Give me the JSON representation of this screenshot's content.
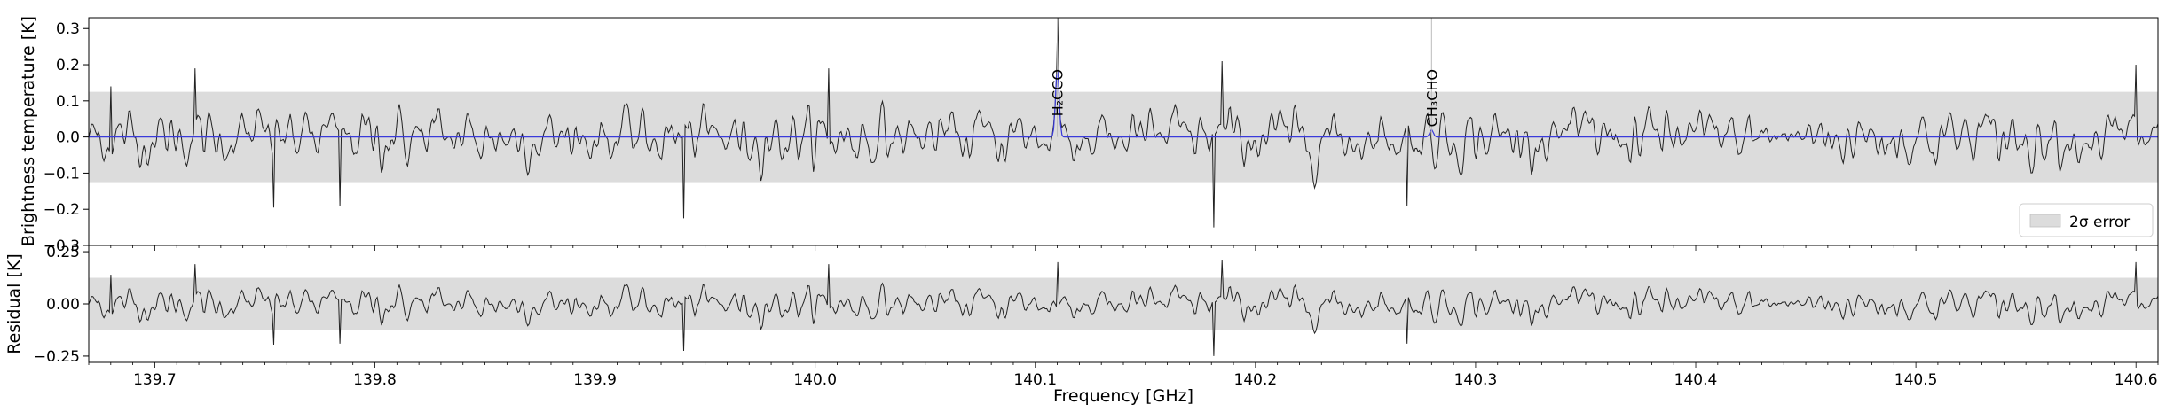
{
  "chart_data": [
    {
      "type": "line",
      "panel": "spectrum",
      "title": "",
      "xlabel": "",
      "ylabel": "Brightness temperature [K]",
      "xlim": [
        139.67,
        140.61
      ],
      "ylim": [
        -0.3,
        0.33
      ],
      "yticks": [
        -0.3,
        -0.2,
        -0.1,
        0.0,
        0.1,
        0.2,
        0.3
      ],
      "ytick_labels": [
        "−0.3",
        "−0.2",
        "−0.1",
        "0.0",
        "0.1",
        "0.2",
        "0.3"
      ],
      "band": {
        "label": "2σ error",
        "lo": -0.125,
        "hi": 0.125,
        "color": "#dcdcdc"
      },
      "series": [
        {
          "color": "#222222",
          "style": "observed spectrum (noise, rms ≈ 0.06 K)",
          "spikes": [
            {
              "x": 139.68,
              "y": 0.14
            },
            {
              "x": 139.718,
              "y": 0.19
            },
            {
              "x": 139.754,
              "y": -0.195
            },
            {
              "x": 139.784,
              "y": -0.19
            },
            {
              "x": 139.94,
              "y": -0.225
            },
            {
              "x": 140.006,
              "y": 0.19
            },
            {
              "x": 140.11,
              "y": 0.2
            },
            {
              "x": 140.181,
              "y": -0.25
            },
            {
              "x": 140.185,
              "y": 0.21
            },
            {
              "x": 140.269,
              "y": -0.19
            },
            {
              "x": 140.6,
              "y": 0.2
            }
          ]
        },
        {
          "color": "#3a3adb",
          "style": "model line fit",
          "lines": [
            {
              "center": 140.11,
              "peak": 0.19,
              "width": 0.0008
            },
            {
              "center": 140.28,
              "peak": 0.02,
              "width": 0.0008
            }
          ]
        }
      ],
      "line_labels": [
        {
          "x": 140.11,
          "text": "H₂CCO"
        },
        {
          "x": 140.28,
          "text": "CH₃CHO"
        }
      ],
      "legend": {
        "position": "lower-right",
        "entries": [
          "2σ error"
        ]
      }
    },
    {
      "type": "line",
      "panel": "residual",
      "title": "",
      "xlabel": "Frequency [GHz]",
      "ylabel": "Residual [K]",
      "xlim": [
        139.67,
        140.61
      ],
      "ylim": [
        -0.28,
        0.28
      ],
      "yticks": [
        -0.25,
        0.0,
        0.25
      ],
      "ytick_labels": [
        "−0.25",
        "0.00",
        "0.25"
      ],
      "xticks": [
        139.7,
        139.8,
        139.9,
        140.0,
        140.1,
        140.2,
        140.3,
        140.4,
        140.5,
        140.6
      ],
      "xtick_labels": [
        "139.7",
        "139.8",
        "139.9",
        "140.0",
        "140.1",
        "140.2",
        "140.3",
        "140.4",
        "140.5",
        "140.6"
      ],
      "band": {
        "label": "2σ error",
        "lo": -0.125,
        "hi": 0.125,
        "color": "#dcdcdc"
      },
      "series": [
        {
          "color": "#222222",
          "style": "residual noise (rms ≈ 0.06 K)"
        }
      ]
    }
  ],
  "legend": {
    "label": "2σ error"
  }
}
